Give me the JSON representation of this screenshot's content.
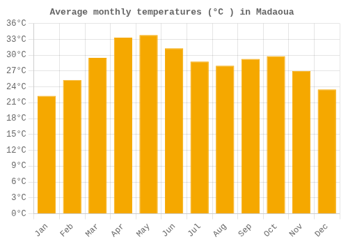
{
  "chart_data": {
    "type": "bar",
    "title": "Average monthly temperatures (°C ) in Madaoua",
    "categories": [
      "Jan",
      "Feb",
      "Mar",
      "Apr",
      "May",
      "Jun",
      "Jul",
      "Aug",
      "Sep",
      "Oct",
      "Nov",
      "Dec"
    ],
    "values": [
      22.3,
      25.3,
      29.5,
      33.3,
      33.8,
      31.3,
      28.8,
      28.0,
      29.3,
      29.8,
      27.0,
      23.5
    ],
    "color": "#F5A800",
    "ylim": [
      0,
      36
    ],
    "yticks": [
      {
        "value": 0,
        "label": "0°C"
      },
      {
        "value": 3,
        "label": "3°C"
      },
      {
        "value": 6,
        "label": "6°C"
      },
      {
        "value": 9,
        "label": "9°C"
      },
      {
        "value": 12,
        "label": "12°C"
      },
      {
        "value": 15,
        "label": "15°C"
      },
      {
        "value": 18,
        "label": "18°C"
      },
      {
        "value": 21,
        "label": "21°C"
      },
      {
        "value": 24,
        "label": "24°C"
      },
      {
        "value": 27,
        "label": "27°C"
      },
      {
        "value": 30,
        "label": "30°C"
      },
      {
        "value": 33,
        "label": "33°C"
      },
      {
        "value": 36,
        "label": "36°C"
      }
    ],
    "grid": true
  }
}
